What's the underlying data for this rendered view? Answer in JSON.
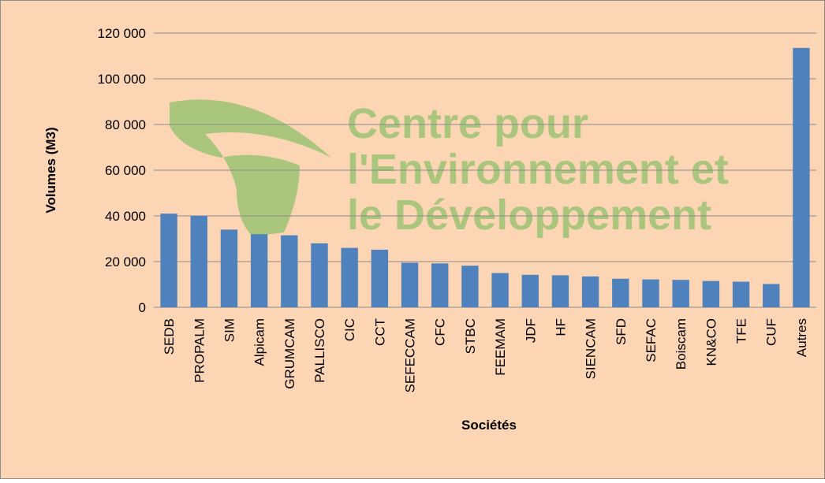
{
  "chart_data": {
    "type": "bar",
    "categories": [
      "SEDB",
      "PROPALM",
      "SIM",
      "Alpicam",
      "GRUMCAM",
      "PALLISCO",
      "CIC",
      "CCT",
      "SEFECCAM",
      "CFC",
      "STBC",
      "FEEMAM",
      "JDF",
      "HF",
      "SIENCAM",
      "SFD",
      "SEFAC",
      "Boiscam",
      "KN&CO",
      "TFE",
      "CUF",
      "Autres"
    ],
    "values": [
      41000,
      40000,
      34000,
      32000,
      31500,
      28000,
      26000,
      25200,
      19500,
      19200,
      18200,
      15000,
      14200,
      14000,
      13500,
      12500,
      12200,
      12000,
      11500,
      11200,
      10200,
      113500
    ],
    "color": "#4f81bd",
    "ylim": [
      0,
      120000
    ],
    "yticks": [
      0,
      {
        "value": 20000,
        "label": "20 000"
      },
      {
        "value": 40000,
        "label": "40 000"
      },
      {
        "value": 60000,
        "label": "60 000"
      },
      {
        "value": 80000,
        "label": "80 000"
      },
      {
        "value": 100000,
        "label": "100 000"
      },
      {
        "value": 120000,
        "label": "120 000"
      }
    ],
    "grid": true,
    "x_label": "Sociétés",
    "y_label": "Volumes (M3)",
    "watermark": [
      "Centre pour",
      "l'Environnement et",
      "le Développement"
    ]
  }
}
